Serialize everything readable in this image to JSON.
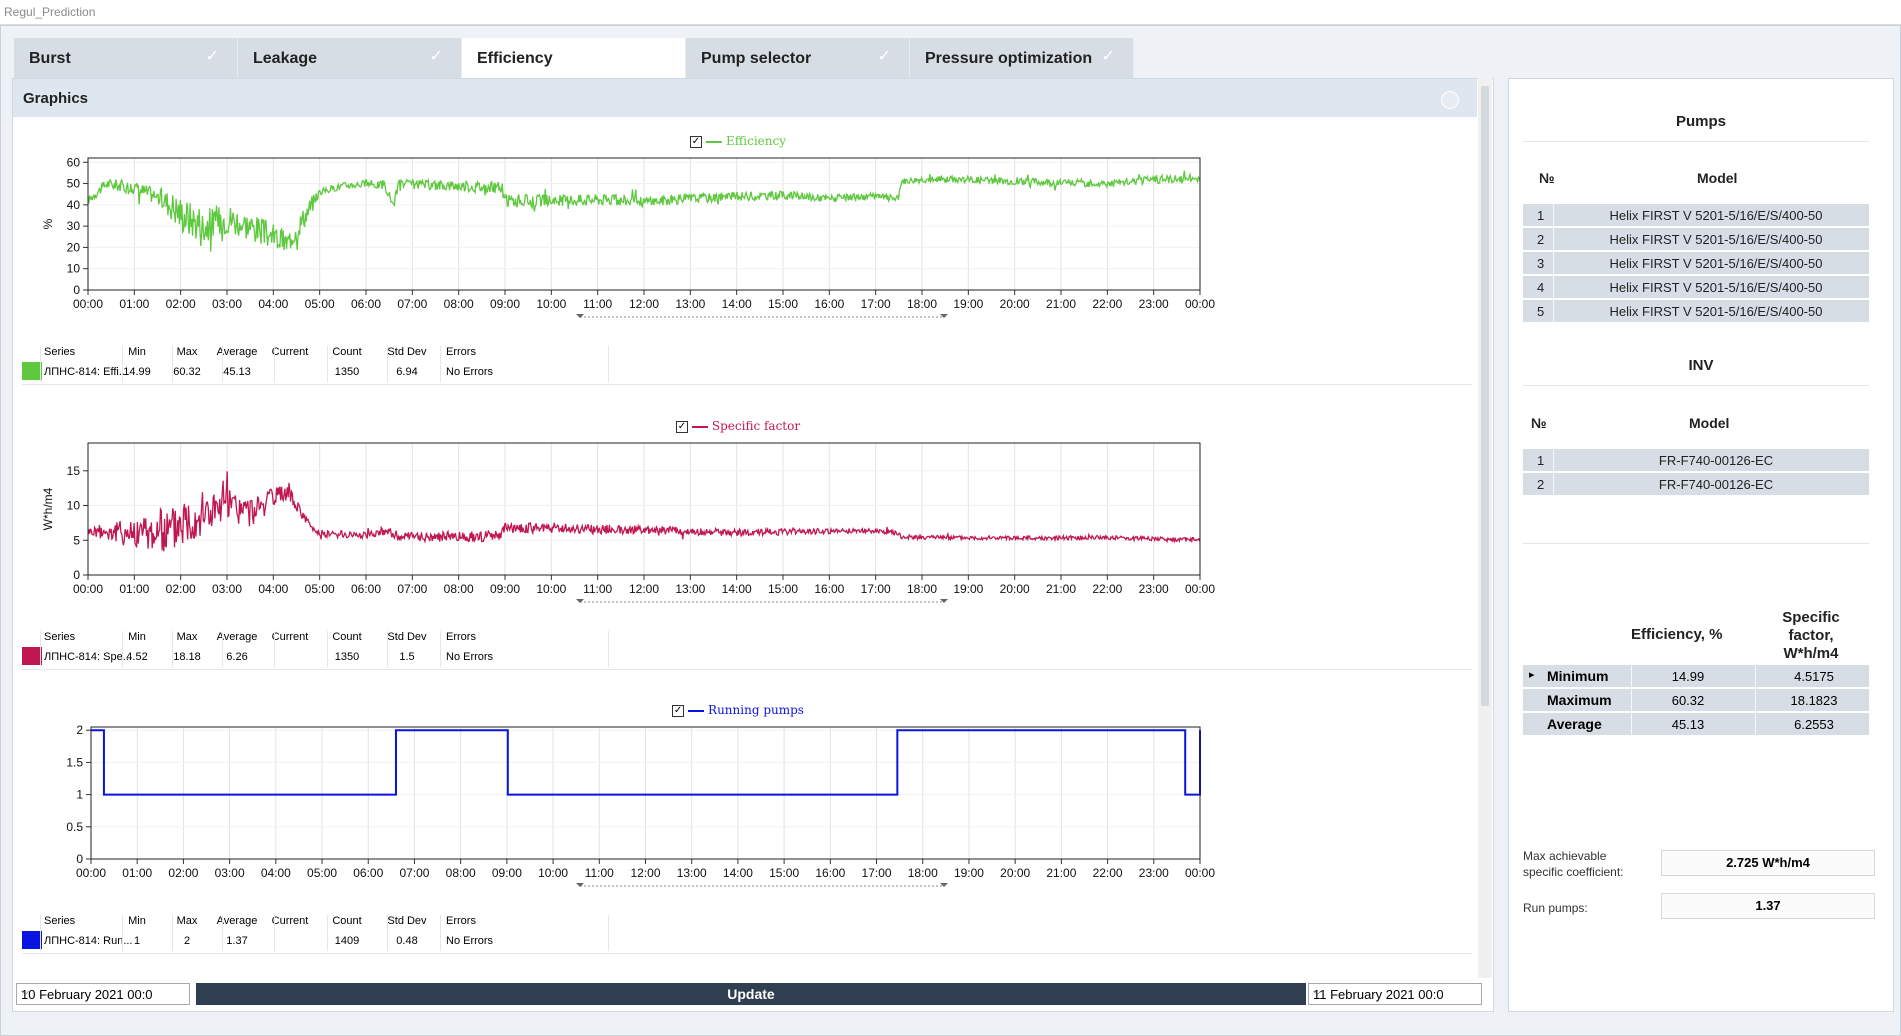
{
  "window": {
    "title": "Regul_Prediction"
  },
  "tabs": [
    {
      "label": "Burst",
      "check": "✓"
    },
    {
      "label": "Leakage",
      "check": "✓"
    },
    {
      "label": "Efficiency",
      "check": "✓"
    },
    {
      "label": "Pump selector",
      "check": "✓"
    },
    {
      "label": "Pressure optimization",
      "check": "✓"
    }
  ],
  "graphics": {
    "title": "Graphics"
  },
  "colors": {
    "efficiency": "#5ec83e",
    "specific": "#c0174f",
    "running": "#0a14e0"
  },
  "time_ticks": [
    "00:00",
    "01:00",
    "02:00",
    "03:00",
    "04:00",
    "05:00",
    "06:00",
    "07:00",
    "08:00",
    "09:00",
    "10:00",
    "11:00",
    "12:00",
    "13:00",
    "14:00",
    "15:00",
    "16:00",
    "17:00",
    "18:00",
    "19:00",
    "20:00",
    "21:00",
    "22:00",
    "23:00",
    "00:00"
  ],
  "stats_headers": {
    "series": "Series",
    "min": "Min",
    "max": "Max",
    "average": "Average",
    "current": "Current",
    "count": "Count",
    "stddev": "Std Dev",
    "errors": "Errors"
  },
  "chart_data": [
    {
      "type": "line",
      "series": [
        {
          "name": "Efficiency"
        }
      ],
      "ylabel": "%",
      "yticks": [
        "0",
        "10",
        "20",
        "30",
        "40",
        "50",
        "60"
      ],
      "ylim": [
        0,
        62
      ],
      "xlim": [
        0,
        24
      ],
      "anchors": [
        [
          0,
          42
        ],
        [
          0.2,
          46
        ],
        [
          0.4,
          50
        ],
        [
          1,
          48
        ],
        [
          1.5,
          44
        ],
        [
          1.8,
          40
        ],
        [
          2,
          36
        ],
        [
          2.5,
          30
        ],
        [
          3,
          34
        ],
        [
          3.5,
          30
        ],
        [
          4,
          25
        ],
        [
          4.3,
          22
        ],
        [
          4.6,
          32
        ],
        [
          5,
          46
        ],
        [
          5.5,
          49
        ],
        [
          6,
          50
        ],
        [
          6.4,
          49
        ],
        [
          6.6,
          40
        ],
        [
          6.7,
          50
        ],
        [
          7,
          49.5
        ],
        [
          8,
          49
        ],
        [
          8.9,
          48
        ],
        [
          9,
          42
        ],
        [
          10,
          42
        ],
        [
          11,
          42.5
        ],
        [
          12,
          41.5
        ],
        [
          13,
          43
        ],
        [
          14,
          44
        ],
        [
          15,
          44.5
        ],
        [
          16,
          43
        ],
        [
          17,
          44
        ],
        [
          17.5,
          43
        ],
        [
          17.55,
          51
        ],
        [
          18,
          52
        ],
        [
          19,
          52
        ],
        [
          20,
          51
        ],
        [
          21,
          50.5
        ],
        [
          22,
          50
        ],
        [
          22.6,
          51
        ],
        [
          23,
          52
        ],
        [
          23.5,
          52
        ],
        [
          24,
          53
        ]
      ],
      "noise": [
        [
          0,
          2
        ],
        [
          1.5,
          4
        ],
        [
          2,
          9
        ],
        [
          4.8,
          5
        ],
        [
          5,
          1.5
        ],
        [
          9,
          3
        ],
        [
          17.5,
          1.5
        ],
        [
          24,
          2
        ]
      ],
      "stats": {
        "series": "ЛПНС-814: Effi...",
        "min": "14.99",
        "max": "60.32",
        "average": "45.13",
        "current": "",
        "count": "1350",
        "stddev": "6.94",
        "errors": "No Errors"
      }
    },
    {
      "type": "line",
      "series": [
        {
          "name": "Specific factor"
        }
      ],
      "ylabel": "W*h/m4",
      "yticks": [
        "0",
        "5",
        "10",
        "15"
      ],
      "ylim": [
        0,
        19
      ],
      "xlim": [
        0,
        24
      ],
      "anchors": [
        [
          0,
          6.3
        ],
        [
          1,
          6.1
        ],
        [
          1.8,
          6.4
        ],
        [
          2,
          8
        ],
        [
          2.5,
          9
        ],
        [
          3,
          10
        ],
        [
          3.5,
          9
        ],
        [
          4,
          11
        ],
        [
          4.3,
          12
        ],
        [
          4.5,
          10
        ],
        [
          4.8,
          7
        ],
        [
          5,
          6
        ],
        [
          5.5,
          5.8
        ],
        [
          6,
          5.8
        ],
        [
          6.5,
          6.5
        ],
        [
          6.6,
          5.5
        ],
        [
          8,
          5.5
        ],
        [
          8.9,
          5.6
        ],
        [
          9,
          6.7
        ],
        [
          10,
          6.8
        ],
        [
          11,
          6.6
        ],
        [
          12,
          6.5
        ],
        [
          13,
          6.3
        ],
        [
          14,
          6.1
        ],
        [
          15,
          6.2
        ],
        [
          16,
          6.3
        ],
        [
          17,
          6.4
        ],
        [
          17.5,
          6
        ],
        [
          17.55,
          5.5
        ],
        [
          18,
          5.4
        ],
        [
          20,
          5.3
        ],
        [
          22,
          5.4
        ],
        [
          23,
          5.2
        ],
        [
          24,
          5.1
        ]
      ],
      "noise": [
        [
          0,
          0.6
        ],
        [
          2,
          4
        ],
        [
          4.8,
          0.5
        ],
        [
          9,
          0.8
        ],
        [
          17.5,
          0.3
        ],
        [
          24,
          0.3
        ]
      ],
      "stats": {
        "series": "ЛПНС-814: Spe...",
        "min": "4.52",
        "max": "18.18",
        "average": "6.26",
        "current": "",
        "count": "1350",
        "stddev": "1.5",
        "errors": "No Errors"
      }
    },
    {
      "type": "line",
      "series": [
        {
          "name": "Running pumps"
        }
      ],
      "ylabel": "",
      "yticks": [
        "0",
        "0.5",
        "1",
        "1.5",
        "2"
      ],
      "ylim": [
        0,
        2.05
      ],
      "xlim": [
        0,
        24
      ],
      "steps": [
        [
          0,
          2
        ],
        [
          0.28,
          1
        ],
        [
          6.6,
          2
        ],
        [
          9.02,
          1
        ],
        [
          17.45,
          2
        ],
        [
          23.68,
          1
        ],
        [
          24,
          2
        ]
      ],
      "stats": {
        "series": "ЛПНС-814: Run...",
        "min": "1",
        "max": "2",
        "average": "1.37",
        "current": "",
        "count": "1409",
        "stddev": "0.48",
        "errors": "No Errors"
      }
    }
  ],
  "bottom": {
    "date_from": "10  February  2021 00:0",
    "date_to": "11  February  2021 00:0",
    "update_label": "Update",
    "dropdown": "⌵"
  },
  "sidebar": {
    "pumps_title": "Pumps",
    "col_no": "№",
    "col_model": "Model",
    "pumps": [
      {
        "n": "1",
        "model": "Helix FIRST V 5201-5/16/E/S/400-50"
      },
      {
        "n": "2",
        "model": "Helix FIRST V 5201-5/16/E/S/400-50"
      },
      {
        "n": "3",
        "model": "Helix FIRST V 5201-5/16/E/S/400-50"
      },
      {
        "n": "4",
        "model": "Helix FIRST V 5201-5/16/E/S/400-50"
      },
      {
        "n": "5",
        "model": "Helix FIRST V 5201-5/16/E/S/400-50"
      }
    ],
    "inv_title": "INV",
    "inv": [
      {
        "n": "1",
        "model": "FR-F740-00126-EC"
      },
      {
        "n": "2",
        "model": "FR-F740-00126-EC"
      }
    ],
    "summary_headers": {
      "eff": "Efficiency, %",
      "spec1": "Specific",
      "spec2": "factor,",
      "spec3": "W*h/m4"
    },
    "summary_rows": [
      {
        "label": "Minimum",
        "eff": "14.99",
        "spec": "4.5175",
        "arrow": "▸"
      },
      {
        "label": "Maximum",
        "eff": "60.32",
        "spec": "18.1823",
        "arrow": ""
      },
      {
        "label": "Average",
        "eff": "45.13",
        "spec": "6.2553",
        "arrow": ""
      }
    ],
    "max_coef_label1": "Max achievable",
    "max_coef_label2": "specific coefficient:",
    "max_coef_value": "2.725 W*h/m4",
    "run_pumps_label": "Run pumps:",
    "run_pumps_value": "1.37"
  }
}
